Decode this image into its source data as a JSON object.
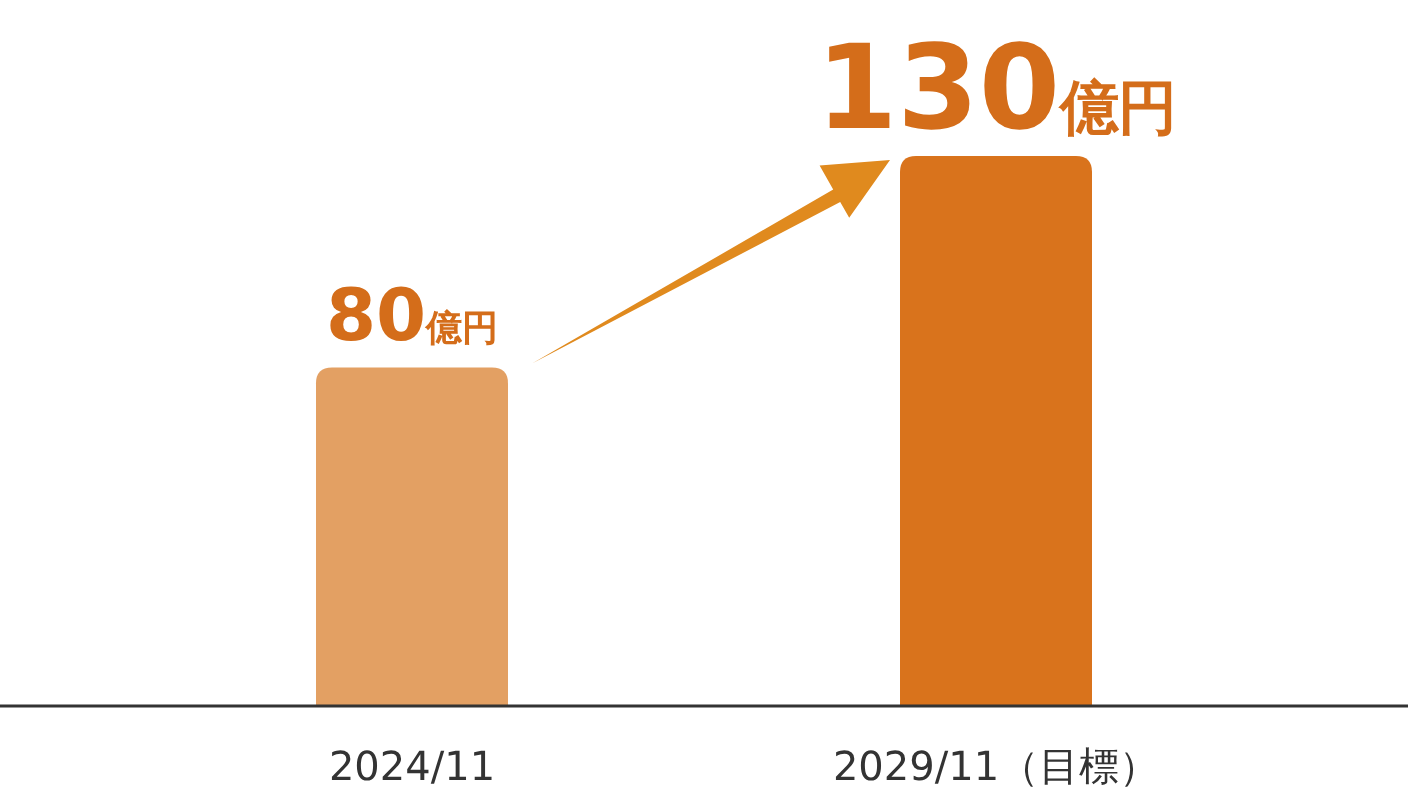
{
  "chart_data": {
    "type": "bar",
    "categories": [
      "2024/11",
      "2029/11（目標）"
    ],
    "values": [
      80,
      130
    ],
    "colors": [
      "#e3a063",
      "#d9731c"
    ],
    "value_labels": [
      "80億円",
      "130億円"
    ]
  }
}
